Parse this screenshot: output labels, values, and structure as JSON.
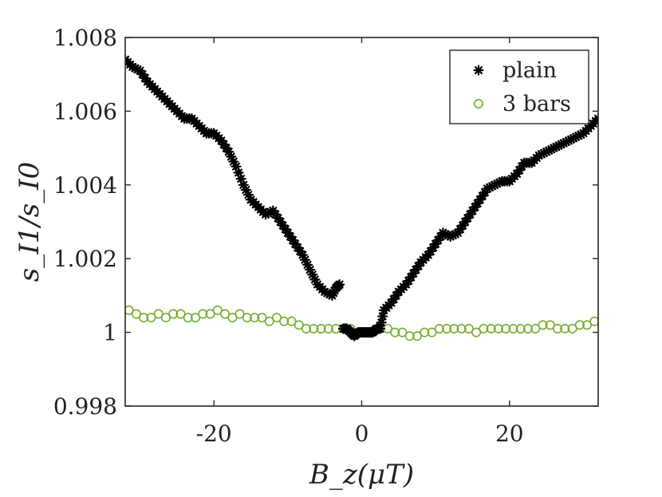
{
  "chart_data": {
    "type": "scatter",
    "title": "",
    "xlabel": "B_z(μT)",
    "ylabel": "s_I1/s_I0",
    "xlim": [
      -32,
      32
    ],
    "ylim": [
      0.998,
      1.008
    ],
    "x_ticks": [
      -20,
      0,
      20
    ],
    "x_tick_labels": [
      "-20",
      "0",
      "20"
    ],
    "y_ticks": [
      0.998,
      1.0,
      1.002,
      1.004,
      1.006,
      1.008
    ],
    "y_tick_labels": [
      "0.998",
      "1",
      "1.002",
      "1.004",
      "1.006",
      "1.008"
    ],
    "grid": false,
    "legend_position": "top-right",
    "series": [
      {
        "name": "plain",
        "marker": "asterisk",
        "color": "#000000",
        "x": [
          -32,
          -31,
          -30,
          -29,
          -28,
          -27,
          -26,
          -25,
          -24,
          -23,
          -22,
          -21,
          -20,
          -19,
          -18,
          -17,
          -16,
          -15,
          -14,
          -13,
          -12,
          -11,
          -10,
          -9,
          -8,
          -7,
          -6,
          -5,
          -4,
          -3.5,
          -3,
          -2.5,
          -2,
          -1.5,
          -1,
          -0.5,
          0,
          0.5,
          1,
          1.5,
          2,
          2.5,
          3,
          4,
          5,
          6,
          7,
          8,
          9,
          10,
          11,
          12,
          13,
          14,
          15,
          16,
          17,
          18,
          19,
          20,
          21,
          22,
          23,
          24,
          25,
          26,
          27,
          28,
          29,
          30,
          31,
          32
        ],
        "y": [
          1.0074,
          1.0072,
          1.0071,
          1.0068,
          1.0066,
          1.0064,
          1.0062,
          1.006,
          1.0058,
          1.0058,
          1.0056,
          1.0054,
          1.0054,
          1.0052,
          1.0049,
          1.0045,
          1.004,
          1.0036,
          1.0034,
          1.0032,
          1.0033,
          1.003,
          1.0027,
          1.0024,
          1.0021,
          1.0017,
          1.0013,
          1.0011,
          1.001,
          1.0012,
          1.0013,
          1.0001,
          1.0001,
          1.0,
          0.9999,
          1.0,
          1.0,
          1.0,
          1.0,
          1.0,
          1.0001,
          1.0001,
          1.0006,
          1.0008,
          1.0011,
          1.0013,
          1.0016,
          1.0019,
          1.0021,
          1.0024,
          1.0027,
          1.0026,
          1.0027,
          1.003,
          1.0033,
          1.0036,
          1.0039,
          1.004,
          1.0041,
          1.0041,
          1.0043,
          1.0046,
          1.0046,
          1.0048,
          1.0049,
          1.005,
          1.0051,
          1.0052,
          1.0053,
          1.0054,
          1.0056,
          1.0058
        ]
      },
      {
        "name": "3 bars",
        "marker": "circle",
        "color": "#77ac30",
        "x": [
          -31.5,
          -30.5,
          -29.5,
          -28.5,
          -27.5,
          -26.5,
          -25.5,
          -24.5,
          -23.5,
          -22.5,
          -21.5,
          -20.5,
          -19.5,
          -18.5,
          -17.5,
          -16.5,
          -15.5,
          -14.5,
          -13.5,
          -12.5,
          -11.5,
          -10.5,
          -9.5,
          -8.5,
          -7.5,
          -6.5,
          -5.5,
          -4.5,
          -3.5,
          -2.5,
          -1.5,
          -0.5,
          0.5,
          1.5,
          2.5,
          3.5,
          4.5,
          5.5,
          6.5,
          7.5,
          8.5,
          9.5,
          10.5,
          11.5,
          12.5,
          13.5,
          14.5,
          15.5,
          16.5,
          17.5,
          18.5,
          19.5,
          20.5,
          21.5,
          22.5,
          23.5,
          24.5,
          25.5,
          26.5,
          27.5,
          28.5,
          29.5,
          30.5,
          31.5
        ],
        "y": [
          1.0006,
          1.0005,
          1.0004,
          1.0004,
          1.0005,
          1.0004,
          1.0005,
          1.0005,
          1.0004,
          1.0004,
          1.0005,
          1.0005,
          1.0006,
          1.0005,
          1.0004,
          1.0005,
          1.0004,
          1.0004,
          1.0004,
          1.0003,
          1.0004,
          1.0003,
          1.0003,
          1.0002,
          1.0001,
          1.0001,
          1.0001,
          1.0001,
          1.0001,
          1.0001,
          1.0001,
          1.0,
          1.0,
          1.0,
          1.0001,
          1.0001,
          1.0,
          1.0,
          0.9999,
          0.9999,
          1.0,
          1.0,
          1.0001,
          1.0001,
          1.0001,
          1.0001,
          1.0001,
          1.0,
          1.0001,
          1.0001,
          1.0001,
          1.0001,
          1.0001,
          1.0001,
          1.0001,
          1.0001,
          1.0002,
          1.0002,
          1.0001,
          1.0001,
          1.0001,
          1.0002,
          1.0002,
          1.0003
        ]
      }
    ]
  }
}
